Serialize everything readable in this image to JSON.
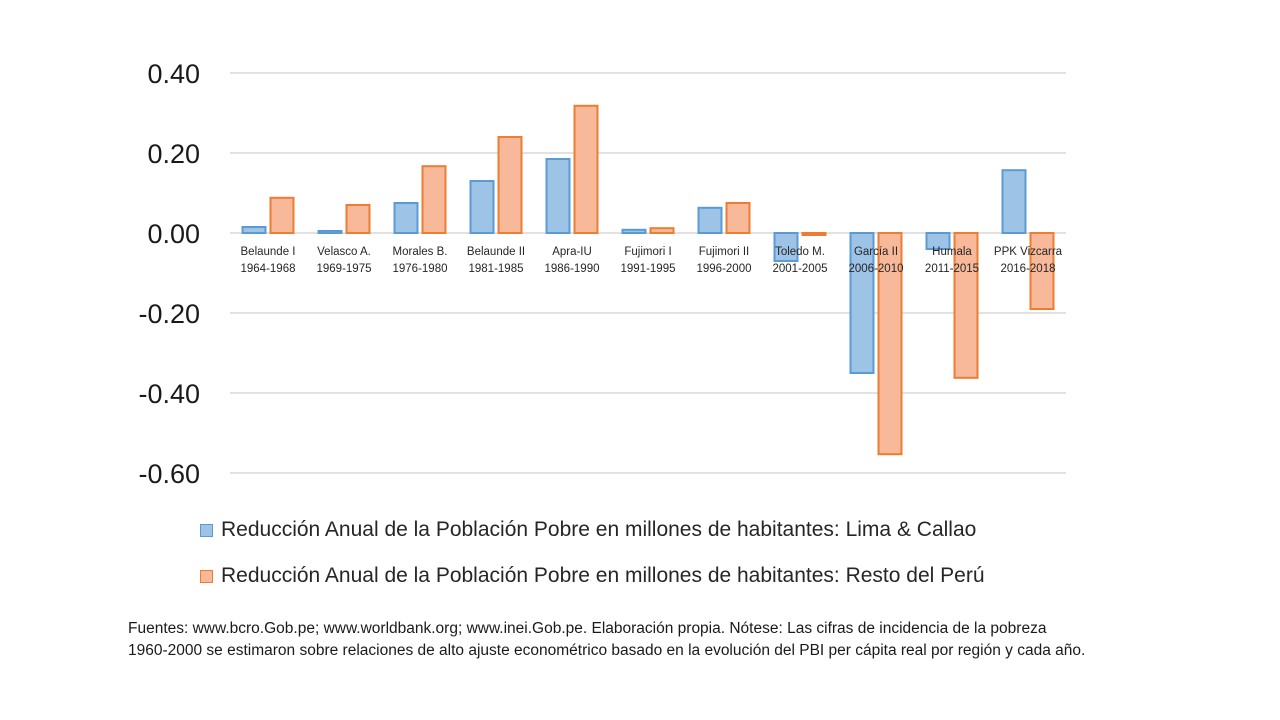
{
  "chart_data": {
    "type": "bar",
    "title": "",
    "xlabel": "",
    "ylabel": "",
    "ylim": [
      -0.6,
      0.4
    ],
    "yticks": [
      "0.40",
      "0.20",
      "0.00",
      "-0.20",
      "-0.40",
      "-0.60"
    ],
    "ytick_values": [
      0.4,
      0.2,
      0.0,
      -0.2,
      -0.4,
      -0.6
    ],
    "grid": true,
    "legend_position": "bottom",
    "categories": [
      [
        "Belaunde I",
        "1964-1968"
      ],
      [
        "Velasco A.",
        "1969-1975"
      ],
      [
        "Morales B.",
        "1976-1980"
      ],
      [
        "Belaunde II",
        "1981-1985"
      ],
      [
        "Apra-IU",
        "1986-1990"
      ],
      [
        "Fujimori I",
        "1991-1995"
      ],
      [
        "Fujimori II",
        "1996-2000"
      ],
      [
        "Toledo M.",
        "2001-2005"
      ],
      [
        "García II",
        "2006-2010"
      ],
      [
        "Humala",
        "2011-2015"
      ],
      [
        "PPK Vizcarra",
        "2016-2018"
      ]
    ],
    "series": [
      {
        "name": "Reducción Anual de la Población Pobre en millones de habitantes: Lima & Callao",
        "color": "#9dc3e6",
        "stroke": "#5b9bd5",
        "values": [
          0.015,
          0.005,
          0.075,
          0.13,
          0.185,
          0.008,
          0.063,
          -0.07,
          -0.35,
          -0.04,
          0.157
        ]
      },
      {
        "name": "Reducción Anual de la Población Pobre en millones de habitantes: Resto del Perú",
        "color": "#f8b89a",
        "stroke": "#ed7d31",
        "values": [
          0.088,
          0.07,
          0.167,
          0.24,
          0.318,
          0.012,
          0.075,
          -0.005,
          -0.553,
          -0.362,
          -0.19
        ]
      }
    ]
  },
  "footnote": {
    "line1": "Fuentes: www.bcro.Gob.pe; www.worldbank.org; www.inei.Gob.pe. Elaboración propia. Nótese: Las cifras de incidencia de la pobreza",
    "line2": "1960-2000 se estimaron sobre relaciones de alto ajuste econométrico basado en la evolución del PBI per cápita real por región y cada año."
  }
}
